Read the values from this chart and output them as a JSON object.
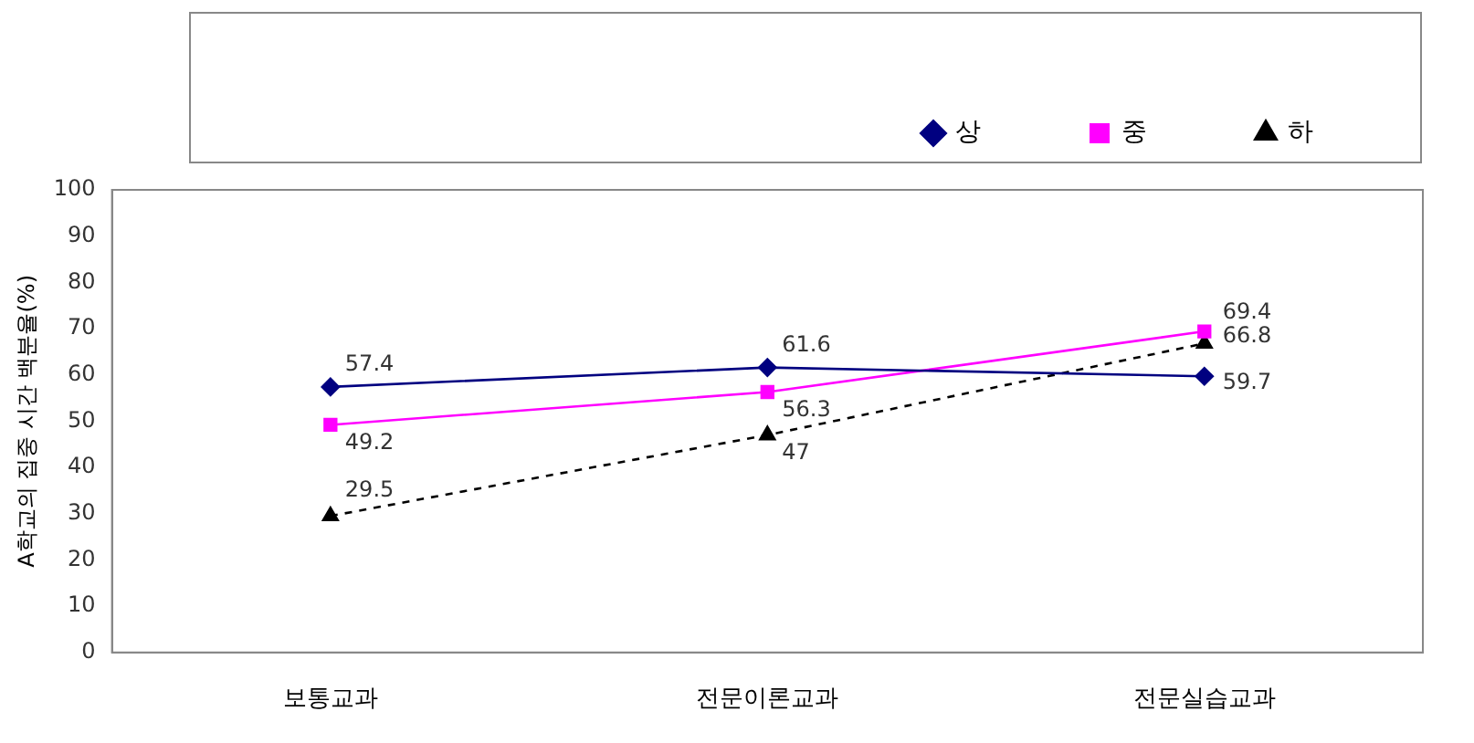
{
  "chart_data": {
    "type": "line",
    "ylabel": "A학교의 집중 시간 백분율(%)",
    "categories": [
      "보통교과",
      "전문이론교과",
      "전문실습교과"
    ],
    "series": [
      {
        "name": "상",
        "color": "#000080",
        "values": [
          57.4,
          61.6,
          59.7
        ],
        "marker": "diamond",
        "line_style": "solid"
      },
      {
        "name": "중",
        "color": "#ff00ff",
        "values": [
          49.2,
          56.3,
          69.4
        ],
        "marker": "square",
        "line_style": "solid"
      },
      {
        "name": "하",
        "color": "#000000",
        "values": [
          29.5,
          47,
          66.8
        ],
        "marker": "triangle",
        "line_style": "dashed"
      }
    ],
    "ylim": [
      0,
      100
    ],
    "yticks": [
      0,
      10,
      20,
      30,
      40,
      50,
      60,
      70,
      80,
      90,
      100
    ],
    "grid": false,
    "legend": "top",
    "data_labels": true
  }
}
